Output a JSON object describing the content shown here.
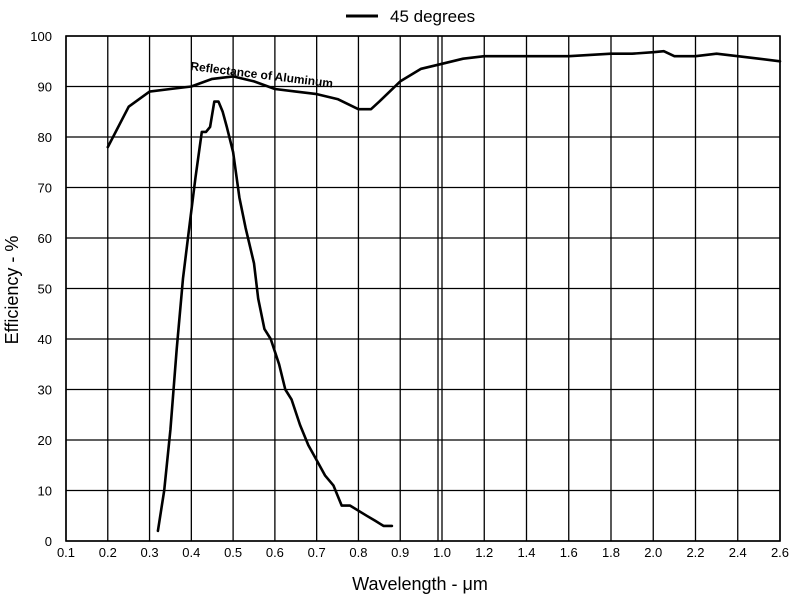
{
  "chart_data": {
    "type": "line",
    "title": "",
    "xlabel": "Wavelength - μm",
    "ylabel": "Efficiency - %",
    "ylim": [
      0,
      100
    ],
    "grid": true,
    "x_ticks": [
      "0.1",
      "0.2",
      "0.3",
      "0.4",
      "0.5",
      "0.6",
      "0.7",
      "0.8",
      "0.9",
      "1.0",
      "1.2",
      "1.4",
      "1.6",
      "1.8",
      "2.0",
      "2.2",
      "2.4",
      "2.6"
    ],
    "y_ticks": [
      "0",
      "10",
      "20",
      "30",
      "40",
      "50",
      "60",
      "70",
      "80",
      "90",
      "100"
    ],
    "x_scale_note": "linear 0.1-1.0 then compressed linear 1.0-2.6",
    "legend": {
      "position": "top-center",
      "entries": [
        "45 degrees"
      ]
    },
    "annotations": [
      "Reflectance of Aluminum"
    ],
    "series": [
      {
        "name": "45 degrees",
        "x": [
          0.32,
          0.335,
          0.35,
          0.365,
          0.38,
          0.395,
          0.41,
          0.425,
          0.435,
          0.445,
          0.455,
          0.465,
          0.475,
          0.485,
          0.5,
          0.515,
          0.53,
          0.55,
          0.56,
          0.575,
          0.59,
          0.61,
          0.625,
          0.64,
          0.66,
          0.68,
          0.7,
          0.72,
          0.74,
          0.76,
          0.78,
          0.8,
          0.82,
          0.84,
          0.86,
          0.88
        ],
        "y": [
          2,
          10,
          22,
          38,
          52,
          62,
          72,
          81,
          81,
          82,
          87,
          87,
          85,
          82,
          77,
          68,
          62,
          55,
          48,
          42,
          40,
          35,
          30,
          28,
          23,
          19,
          16,
          13,
          11,
          7,
          7,
          6,
          5,
          4,
          3,
          3
        ]
      },
      {
        "name": "Reflectance of Aluminum",
        "x": [
          0.2,
          0.25,
          0.3,
          0.35,
          0.4,
          0.45,
          0.5,
          0.55,
          0.6,
          0.65,
          0.7,
          0.75,
          0.8,
          0.83,
          0.85,
          0.9,
          0.95,
          1.0,
          1.1,
          1.2,
          1.4,
          1.6,
          1.8,
          1.9,
          2.0,
          2.05,
          2.1,
          2.2,
          2.3,
          2.4,
          2.5,
          2.6
        ],
        "y": [
          78,
          86,
          89,
          89.5,
          90,
          91.5,
          92,
          91,
          89.5,
          89,
          88.5,
          87.5,
          85.5,
          85.5,
          87,
          91,
          93.5,
          94.5,
          95.5,
          96,
          96,
          96,
          96.5,
          96.5,
          96.8,
          97,
          96,
          96,
          96.5,
          96,
          95.5,
          95
        ]
      }
    ]
  }
}
